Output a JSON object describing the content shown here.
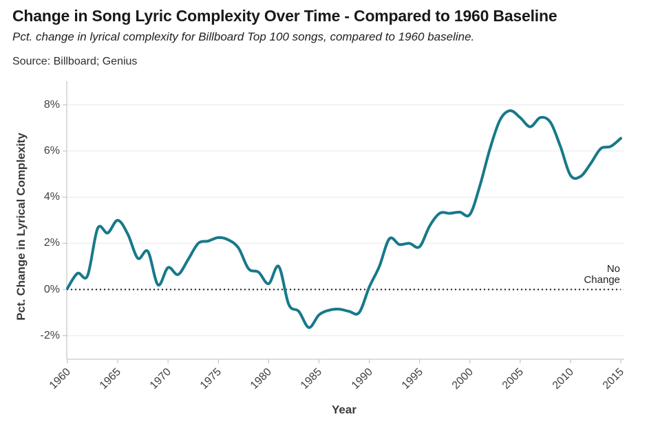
{
  "header": {
    "title": "Change in Song Lyric Complexity Over Time - Compared to 1960 Baseline",
    "subtitle": "Pct. change in lyrical complexity for Billboard Top 100 songs, compared to 1960 baseline.",
    "source": "Source: Billboard; Genius"
  },
  "chart_data": {
    "type": "line",
    "title": "Change in Song Lyric Complexity Over Time - Compared to 1960 Baseline",
    "xlabel": "Year",
    "ylabel": "Pct. Change in Lyrical Complexity",
    "xlim": [
      1960,
      2015
    ],
    "ylim": [
      -3,
      9
    ],
    "grid": "horizontal",
    "legend": "none",
    "line_color": "#17798A",
    "grid_color": "#e8e8e8",
    "axis_color": "#c9c9c9",
    "zero_line_color": "#1a1a1a",
    "x_ticks": [
      1960,
      1965,
      1970,
      1975,
      1980,
      1985,
      1990,
      1995,
      2000,
      2005,
      2010,
      2015
    ],
    "y_ticks": [
      {
        "value": 8,
        "label": "8%"
      },
      {
        "value": 6,
        "label": "6%"
      },
      {
        "value": 4,
        "label": "4%"
      },
      {
        "value": 2,
        "label": "2%"
      },
      {
        "value": 0,
        "label": "0%"
      },
      {
        "value": -2,
        "label": "-2%"
      }
    ],
    "annotation": {
      "line1": "No",
      "line2": "Change",
      "text": "No Change",
      "at_value": 0
    },
    "x": [
      1960,
      1961,
      1962,
      1963,
      1964,
      1965,
      1966,
      1967,
      1968,
      1969,
      1970,
      1971,
      1972,
      1973,
      1974,
      1975,
      1976,
      1977,
      1978,
      1979,
      1980,
      1981,
      1982,
      1983,
      1984,
      1985,
      1986,
      1987,
      1988,
      1989,
      1990,
      1991,
      1992,
      1993,
      1994,
      1995,
      1996,
      1997,
      1998,
      1999,
      2000,
      2001,
      2002,
      2003,
      2004,
      2005,
      2006,
      2007,
      2008,
      2009,
      2010,
      2011,
      2012,
      2013,
      2014,
      2015
    ],
    "values": [
      0.05,
      0.7,
      0.6,
      2.65,
      2.45,
      3.0,
      2.4,
      1.35,
      1.65,
      0.2,
      0.95,
      0.65,
      1.3,
      2.0,
      2.1,
      2.25,
      2.15,
      1.8,
      0.9,
      0.75,
      0.25,
      1.0,
      -0.65,
      -0.95,
      -1.65,
      -1.1,
      -0.9,
      -0.85,
      -0.95,
      -1.0,
      0.1,
      1.0,
      2.2,
      1.95,
      2.0,
      1.85,
      2.75,
      3.3,
      3.3,
      3.35,
      3.25,
      4.5,
      6.1,
      7.35,
      7.75,
      7.45,
      7.05,
      7.45,
      7.25,
      6.2,
      4.95,
      4.9,
      5.45,
      6.1,
      6.2,
      6.55
    ]
  }
}
